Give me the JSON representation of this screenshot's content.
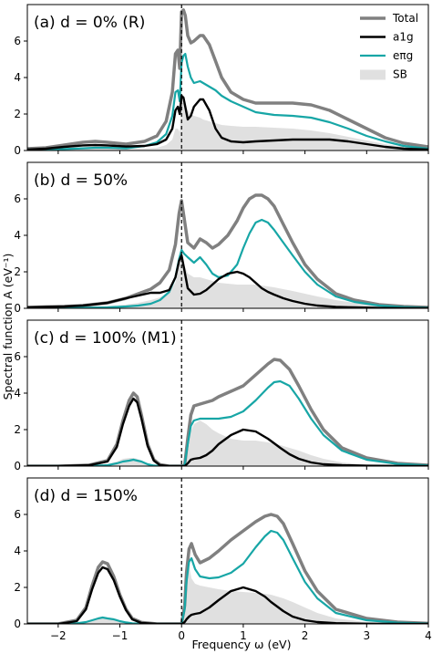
{
  "chart_data": {
    "type": "line",
    "shared_x_axis": {
      "label": "Frequency ω (eV)",
      "lim": [
        -2.5,
        4.0
      ],
      "ticks": [
        -2,
        -1,
        0,
        1,
        2,
        3,
        4
      ]
    },
    "shared_y_axis": {
      "label": "Spectral function A (eV⁻¹)"
    },
    "reference_line": {
      "x": 0,
      "style": "dashed",
      "color": "#000000"
    },
    "legend": {
      "placement": "top-right",
      "entries": [
        {
          "key": "total",
          "label": "Total",
          "color": "#808080"
        },
        {
          "key": "a1g",
          "label": "a1g",
          "color": "#000000"
        },
        {
          "key": "eg",
          "label": "eπg",
          "color": "#17a6a6"
        },
        {
          "key": "sb",
          "label": "SB",
          "color": "#e0e0e0"
        }
      ]
    },
    "panels": [
      {
        "label": "(a) d = 0% (R)",
        "ylim": [
          0,
          8
        ],
        "yticks": [
          0,
          2,
          4,
          6
        ],
        "x": [
          -2.5,
          -2.2,
          -1.9,
          -1.6,
          -1.4,
          -1.2,
          -0.9,
          -0.6,
          -0.4,
          -0.25,
          -0.15,
          -0.1,
          -0.06,
          -0.03,
          0.0,
          0.03,
          0.06,
          0.1,
          0.15,
          0.2,
          0.3,
          0.35,
          0.45,
          0.55,
          0.65,
          0.8,
          1.0,
          1.2,
          1.5,
          1.8,
          2.1,
          2.4,
          2.7,
          3.0,
          3.3,
          3.6,
          4.0
        ],
        "series": [
          {
            "key": "total",
            "values": [
              0.1,
              0.15,
              0.3,
              0.45,
              0.5,
              0.45,
              0.35,
              0.5,
              0.8,
              1.6,
              3.2,
              5.3,
              5.5,
              4.5,
              7.6,
              7.7,
              7.4,
              6.3,
              5.9,
              6.0,
              6.3,
              6.3,
              5.8,
              4.9,
              4.0,
              3.2,
              2.8,
              2.6,
              2.6,
              2.6,
              2.5,
              2.2,
              1.7,
              1.2,
              0.7,
              0.4,
              0.2
            ]
          },
          {
            "key": "a1g",
            "values": [
              0.05,
              0.1,
              0.2,
              0.28,
              0.3,
              0.28,
              0.22,
              0.25,
              0.35,
              0.6,
              1.2,
              2.2,
              2.4,
              2.0,
              3.0,
              2.9,
              2.4,
              1.7,
              1.9,
              2.4,
              2.8,
              2.8,
              2.2,
              1.2,
              0.7,
              0.5,
              0.45,
              0.5,
              0.55,
              0.6,
              0.6,
              0.6,
              0.5,
              0.35,
              0.2,
              0.1,
              0.05
            ]
          },
          {
            "key": "eg",
            "values": [
              0.05,
              0.05,
              0.08,
              0.12,
              0.15,
              0.15,
              0.12,
              0.25,
              0.45,
              0.9,
              1.9,
              3.2,
              3.3,
              2.7,
              4.8,
              5.2,
              5.3,
              4.6,
              4.0,
              3.7,
              3.8,
              3.7,
              3.5,
              3.3,
              3.0,
              2.7,
              2.4,
              2.1,
              1.95,
              1.9,
              1.8,
              1.55,
              1.2,
              0.8,
              0.5,
              0.25,
              0.1
            ]
          },
          {
            "key": "sb",
            "values": [
              0.02,
              0.03,
              0.05,
              0.08,
              0.1,
              0.1,
              0.08,
              0.1,
              0.15,
              0.3,
              0.6,
              1.2,
              1.2,
              1.0,
              2.6,
              2.6,
              2.5,
              2.2,
              2.0,
              1.9,
              1.8,
              1.7,
              1.6,
              1.5,
              1.4,
              1.35,
              1.3,
              1.3,
              1.25,
              1.2,
              1.1,
              0.95,
              0.75,
              0.55,
              0.35,
              0.2,
              0.1
            ]
          }
        ]
      },
      {
        "label": "(b) d = 50%",
        "ylim": [
          0,
          8
        ],
        "yticks": [
          0,
          2,
          4,
          6
        ],
        "x": [
          -2.5,
          -2.2,
          -1.9,
          -1.6,
          -1.2,
          -0.9,
          -0.7,
          -0.5,
          -0.35,
          -0.2,
          -0.1,
          -0.04,
          0.0,
          0.04,
          0.1,
          0.2,
          0.3,
          0.4,
          0.5,
          0.6,
          0.75,
          0.9,
          1.0,
          1.1,
          1.2,
          1.3,
          1.4,
          1.5,
          1.65,
          1.8,
          2.0,
          2.2,
          2.5,
          2.8,
          3.2,
          3.6,
          4.0
        ],
        "series": [
          {
            "key": "total",
            "values": [
              0.05,
              0.08,
              0.1,
              0.15,
              0.3,
              0.55,
              0.8,
              1.05,
              1.4,
              2.1,
              3.5,
              5.2,
              5.9,
              5.0,
              3.6,
              3.3,
              3.8,
              3.6,
              3.3,
              3.5,
              4.0,
              4.8,
              5.5,
              6.0,
              6.2,
              6.2,
              6.0,
              5.6,
              4.6,
              3.6,
              2.4,
              1.6,
              0.8,
              0.45,
              0.2,
              0.1,
              0.05
            ]
          },
          {
            "key": "a1g",
            "values": [
              0.05,
              0.08,
              0.1,
              0.15,
              0.3,
              0.55,
              0.7,
              0.85,
              0.85,
              1.0,
              1.7,
              2.6,
              2.9,
              2.2,
              1.1,
              0.75,
              0.8,
              1.0,
              1.3,
              1.6,
              1.9,
              2.0,
              1.9,
              1.7,
              1.4,
              1.1,
              0.9,
              0.75,
              0.55,
              0.4,
              0.25,
              0.15,
              0.08,
              0.05,
              0.02,
              0.01,
              0.01
            ]
          },
          {
            "key": "eg",
            "values": [
              0.01,
              0.01,
              0.02,
              0.03,
              0.05,
              0.1,
              0.15,
              0.25,
              0.45,
              0.9,
              1.7,
              2.7,
              3.2,
              3.0,
              2.8,
              2.5,
              2.8,
              2.4,
              1.9,
              1.7,
              1.8,
              2.4,
              3.3,
              4.1,
              4.7,
              4.85,
              4.7,
              4.3,
              3.6,
              2.9,
              2.0,
              1.3,
              0.65,
              0.35,
              0.15,
              0.07,
              0.03
            ]
          },
          {
            "key": "sb",
            "values": [
              0.02,
              0.03,
              0.05,
              0.07,
              0.12,
              0.2,
              0.3,
              0.45,
              0.6,
              0.9,
              1.4,
              2.3,
              2.8,
              2.4,
              1.9,
              1.7,
              1.7,
              1.6,
              1.5,
              1.4,
              1.35,
              1.3,
              1.3,
              1.3,
              1.3,
              1.25,
              1.2,
              1.15,
              1.05,
              0.95,
              0.8,
              0.65,
              0.45,
              0.3,
              0.15,
              0.08,
              0.04
            ]
          }
        ]
      },
      {
        "label": "(c) d = 100% (M1)",
        "ylim": [
          0,
          8
        ],
        "yticks": [
          0,
          2,
          4,
          6
        ],
        "x": [
          -2.5,
          -2.0,
          -1.5,
          -1.2,
          -1.05,
          -0.95,
          -0.85,
          -0.78,
          -0.72,
          -0.65,
          -0.55,
          -0.45,
          -0.35,
          -0.2,
          0.0,
          0.05,
          0.1,
          0.15,
          0.2,
          0.3,
          0.4,
          0.5,
          0.6,
          0.8,
          1.0,
          1.2,
          1.4,
          1.5,
          1.6,
          1.75,
          1.9,
          2.1,
          2.3,
          2.6,
          3.0,
          3.5,
          4.0
        ],
        "series": [
          {
            "key": "total",
            "values": [
              0.0,
              0.0,
              0.05,
              0.3,
              1.2,
              2.5,
              3.6,
              4.0,
              3.8,
              2.8,
              1.2,
              0.35,
              0.08,
              0.0,
              0.0,
              0.05,
              1.5,
              2.8,
              3.3,
              3.4,
              3.5,
              3.6,
              3.8,
              4.1,
              4.4,
              5.0,
              5.6,
              5.85,
              5.8,
              5.3,
              4.4,
              3.1,
              2.0,
              1.0,
              0.45,
              0.15,
              0.05
            ]
          },
          {
            "key": "a1g",
            "values": [
              0.0,
              0.0,
              0.05,
              0.25,
              1.05,
              2.3,
              3.3,
              3.7,
              3.5,
              2.6,
              1.1,
              0.3,
              0.05,
              0.0,
              0.0,
              0.0,
              0.15,
              0.35,
              0.4,
              0.45,
              0.6,
              0.85,
              1.2,
              1.7,
              2.0,
              1.9,
              1.5,
              1.25,
              1.0,
              0.65,
              0.4,
              0.2,
              0.1,
              0.05,
              0.02,
              0.01,
              0.0
            ]
          },
          {
            "key": "eg",
            "values": [
              0.0,
              0.0,
              0.0,
              0.05,
              0.15,
              0.25,
              0.3,
              0.35,
              0.3,
              0.25,
              0.1,
              0.03,
              0.0,
              0.0,
              0.0,
              0.05,
              1.2,
              2.2,
              2.5,
              2.6,
              2.6,
              2.6,
              2.6,
              2.7,
              3.0,
              3.6,
              4.3,
              4.6,
              4.65,
              4.4,
              3.7,
              2.6,
              1.7,
              0.85,
              0.35,
              0.12,
              0.04
            ]
          },
          {
            "key": "sb",
            "values": [
              0.0,
              0.0,
              0.02,
              0.1,
              0.25,
              0.4,
              0.45,
              0.45,
              0.4,
              0.3,
              0.15,
              0.05,
              0.0,
              0.0,
              0.0,
              0.1,
              0.8,
              1.9,
              2.3,
              2.5,
              2.3,
              2.0,
              1.8,
              1.5,
              1.4,
              1.4,
              1.3,
              1.25,
              1.15,
              1.0,
              0.85,
              0.6,
              0.4,
              0.2,
              0.08,
              0.03,
              0.01
            ]
          }
        ]
      },
      {
        "label": "(d) d = 150%",
        "ylim": [
          0,
          8
        ],
        "yticks": [
          0,
          2,
          4,
          6
        ],
        "x": [
          -2.5,
          -2.0,
          -1.7,
          -1.55,
          -1.45,
          -1.35,
          -1.28,
          -1.2,
          -1.1,
          -1.0,
          -0.9,
          -0.8,
          -0.65,
          -0.4,
          0.0,
          0.05,
          0.08,
          0.12,
          0.16,
          0.22,
          0.3,
          0.45,
          0.6,
          0.8,
          1.0,
          1.2,
          1.35,
          1.45,
          1.55,
          1.65,
          1.8,
          2.0,
          2.2,
          2.5,
          3.0,
          3.5,
          4.0
        ],
        "series": [
          {
            "key": "total",
            "values": [
              0.0,
              0.0,
              0.2,
              0.9,
              2.1,
              3.1,
              3.4,
              3.3,
              2.6,
              1.6,
              0.8,
              0.3,
              0.08,
              0.0,
              0.0,
              1.0,
              2.8,
              4.1,
              4.4,
              3.8,
              3.35,
              3.6,
              4.0,
              4.6,
              5.1,
              5.6,
              5.9,
              6.0,
              5.9,
              5.5,
              4.4,
              2.9,
              1.8,
              0.8,
              0.3,
              0.1,
              0.03
            ]
          },
          {
            "key": "a1g",
            "values": [
              0.0,
              0.0,
              0.15,
              0.8,
              1.9,
              2.8,
              3.1,
              3.0,
              2.4,
              1.5,
              0.75,
              0.25,
              0.05,
              0.0,
              0.0,
              0.1,
              0.25,
              0.4,
              0.5,
              0.55,
              0.6,
              0.9,
              1.3,
              1.8,
              2.0,
              1.8,
              1.5,
              1.2,
              0.95,
              0.7,
              0.4,
              0.2,
              0.1,
              0.04,
              0.01,
              0.0,
              0.0
            ]
          },
          {
            "key": "eg",
            "values": [
              0.0,
              0.0,
              0.03,
              0.1,
              0.2,
              0.3,
              0.35,
              0.3,
              0.25,
              0.15,
              0.08,
              0.03,
              0.01,
              0.0,
              0.0,
              0.8,
              2.3,
              3.4,
              3.6,
              3.0,
              2.6,
              2.5,
              2.55,
              2.8,
              3.3,
              4.2,
              4.8,
              5.1,
              5.0,
              4.6,
              3.6,
              2.3,
              1.4,
              0.6,
              0.2,
              0.07,
              0.02
            ]
          },
          {
            "key": "sb",
            "values": [
              0.0,
              0.0,
              0.02,
              0.1,
              0.2,
              0.3,
              0.35,
              0.35,
              0.3,
              0.2,
              0.1,
              0.04,
              0.01,
              0.0,
              0.0,
              1.5,
              3.6,
              3.2,
              2.5,
              2.2,
              2.1,
              2.0,
              1.9,
              1.8,
              1.75,
              1.7,
              1.65,
              1.6,
              1.5,
              1.4,
              1.2,
              0.9,
              0.6,
              0.3,
              0.1,
              0.03,
              0.01
            ]
          }
        ]
      }
    ]
  }
}
